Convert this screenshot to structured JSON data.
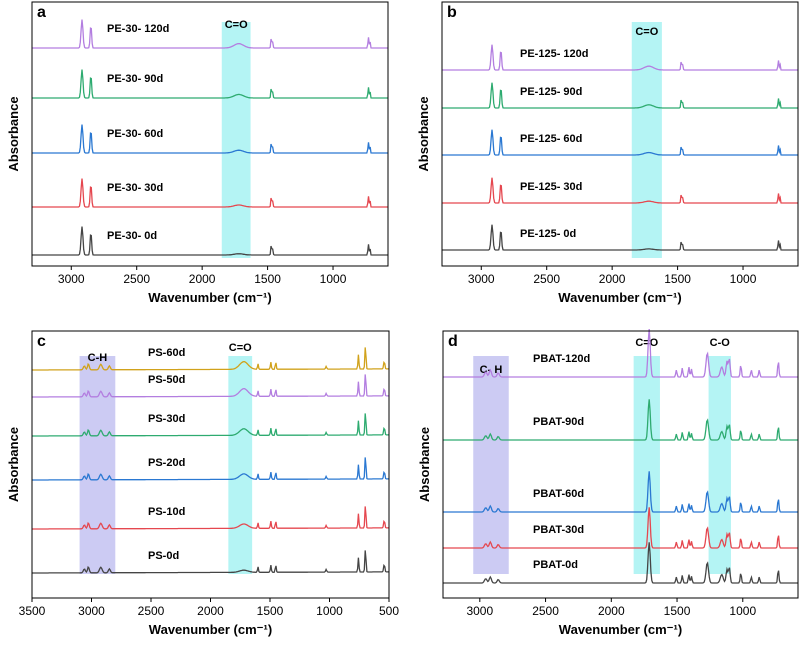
{
  "colors": {
    "black": "#454545",
    "red": "#e5474f",
    "blue": "#2a78d2",
    "green": "#2eab70",
    "purple": "#b37ee0",
    "gold": "#d1a21b",
    "cyan_band": "#b4f4f4",
    "lavender_band": "#cccbf3"
  },
  "chart_data": [
    {
      "panel": "a",
      "type": "line",
      "ylabel": "Absorbance",
      "xlabel": "Wavenumber (cm⁻¹)",
      "xlim": [
        3300,
        580
      ],
      "xticks": [
        3000,
        2500,
        2000,
        1500,
        1000
      ],
      "bands": [
        {
          "label": "C=O",
          "range": [
            1850,
            1630
          ],
          "color": "cyan_band"
        }
      ],
      "series": [
        {
          "name": "PE-30- 0d",
          "color": "black"
        },
        {
          "name": "PE-30- 30d",
          "color": "red"
        },
        {
          "name": "PE-30- 60d",
          "color": "blue"
        },
        {
          "name": "PE-30- 90d",
          "color": "green"
        },
        {
          "name": "PE-30- 120d",
          "color": "purple"
        }
      ]
    },
    {
      "panel": "b",
      "type": "line",
      "ylabel": "Absorbance",
      "xlabel": "Wavenumber (cm⁻¹)",
      "xlim": [
        3300,
        580
      ],
      "xticks": [
        3000,
        2500,
        2000,
        1500,
        1000
      ],
      "bands": [
        {
          "label": "C=O",
          "range": [
            1850,
            1620
          ],
          "color": "cyan_band"
        }
      ],
      "series": [
        {
          "name": "PE-125- 0d",
          "color": "black"
        },
        {
          "name": "PE-125- 30d",
          "color": "red"
        },
        {
          "name": "PE-125- 60d",
          "color": "blue"
        },
        {
          "name": "PE-125- 90d",
          "color": "green"
        },
        {
          "name": "PE-125- 120d",
          "color": "purple"
        }
      ]
    },
    {
      "panel": "c",
      "type": "line",
      "ylabel": "Absorbance",
      "xlabel": "Wavenumber (cm⁻¹)",
      "xlim": [
        3500,
        500
      ],
      "xticks": [
        3500,
        3000,
        2500,
        2000,
        1500,
        1000,
        500
      ],
      "bands": [
        {
          "label": "C-H",
          "range": [
            3100,
            2800
          ],
          "color": "lavender_band"
        },
        {
          "label": "C=O",
          "range": [
            1850,
            1650
          ],
          "color": "cyan_band"
        }
      ],
      "series": [
        {
          "name": "PS-0d",
          "color": "black"
        },
        {
          "name": "PS-10d",
          "color": "red"
        },
        {
          "name": "PS-20d",
          "color": "blue"
        },
        {
          "name": "PS-30d",
          "color": "green"
        },
        {
          "name": "PS-50d",
          "color": "purple"
        },
        {
          "name": "PS-60d",
          "color": "gold"
        }
      ]
    },
    {
      "panel": "d",
      "type": "line",
      "ylabel": "Absorbance",
      "xlabel": "Wavenumber (cm⁻¹)",
      "xlim": [
        3280,
        580
      ],
      "xticks": [
        3000,
        2500,
        2000,
        1500,
        1000
      ],
      "bands": [
        {
          "label": "C- H",
          "range": [
            3050,
            2780
          ],
          "color": "lavender_band"
        },
        {
          "label": "C=O",
          "range": [
            1830,
            1630
          ],
          "color": "cyan_band"
        },
        {
          "label": "C-O",
          "range": [
            1260,
            1090
          ],
          "color": "cyan_band"
        }
      ],
      "series": [
        {
          "name": "PBAT-0d",
          "color": "black"
        },
        {
          "name": "PBAT-30d",
          "color": "red"
        },
        {
          "name": "PBAT-60d",
          "color": "blue"
        },
        {
          "name": "PBAT-90d",
          "color": "green"
        },
        {
          "name": "PBAT-120d",
          "color": "purple"
        }
      ]
    }
  ]
}
